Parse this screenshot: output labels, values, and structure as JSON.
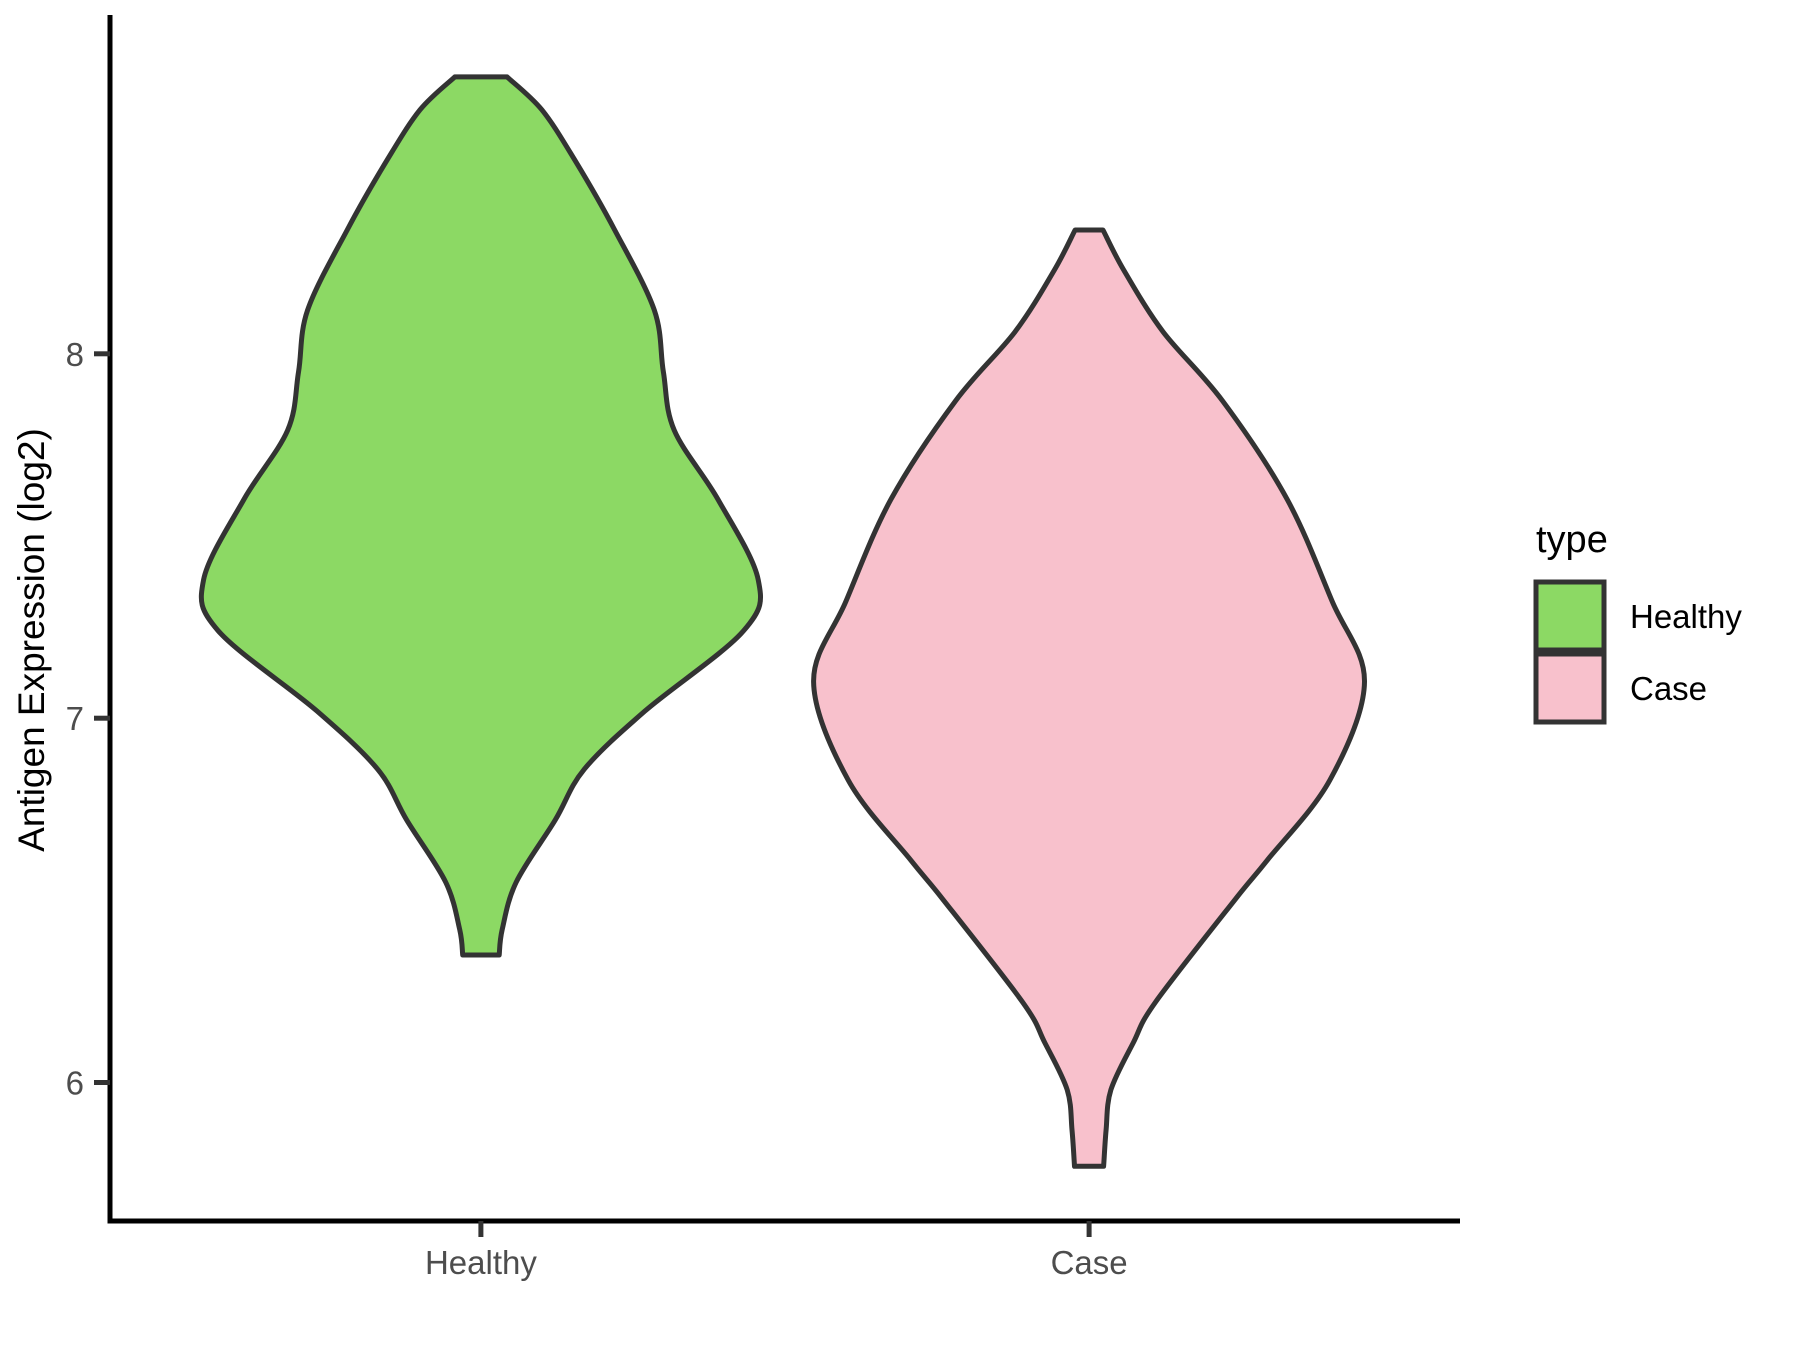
{
  "chart_data": {
    "type": "violin",
    "title": "",
    "xlabel": "",
    "ylabel": "Antigen Expression (log2)",
    "categories": [
      "Healthy",
      "Case"
    ],
    "x_positions": [
      1,
      2
    ],
    "xlim": [
      0.39,
      2.61
    ],
    "ylim": [
      5.62,
      8.93
    ],
    "y_ticks": [
      6,
      7,
      8
    ],
    "grid": false,
    "background": "#FFFFFF",
    "axis_color": "#000000",
    "tick_label_color": "#4D4D4D",
    "outline_color": "#333333",
    "legend": {
      "title": "type",
      "position": "right",
      "entries": [
        {
          "label": "Healthy",
          "color": "#8CD964"
        },
        {
          "label": "Case",
          "color": "#F8C1CC"
        }
      ]
    },
    "series": [
      {
        "name": "Healthy",
        "color": "#8CD964",
        "x": 1,
        "value_range": [
          6.35,
          8.76
        ],
        "profile": [
          [
            8.76,
            0.043
          ],
          [
            8.67,
            0.1
          ],
          [
            8.53,
            0.155
          ],
          [
            8.34,
            0.22
          ],
          [
            8.12,
            0.285
          ],
          [
            7.95,
            0.3
          ],
          [
            7.79,
            0.318
          ],
          [
            7.6,
            0.39
          ],
          [
            7.38,
            0.456
          ],
          [
            7.24,
            0.432
          ],
          [
            7.02,
            0.27
          ],
          [
            6.86,
            0.17
          ],
          [
            6.72,
            0.122
          ],
          [
            6.55,
            0.058
          ],
          [
            6.42,
            0.035
          ],
          [
            6.35,
            0.03
          ]
        ]
      },
      {
        "name": "Case",
        "color": "#F8C1CC",
        "x": 2,
        "value_range": [
          5.77,
          8.34
        ],
        "profile": [
          [
            8.34,
            0.023
          ],
          [
            8.23,
            0.057
          ],
          [
            8.06,
            0.122
          ],
          [
            7.87,
            0.22
          ],
          [
            7.6,
            0.326
          ],
          [
            7.32,
            0.4
          ],
          [
            7.1,
            0.453
          ],
          [
            6.83,
            0.396
          ],
          [
            6.61,
            0.293
          ],
          [
            6.5,
            0.239
          ],
          [
            6.22,
            0.109
          ],
          [
            6.11,
            0.073
          ],
          [
            5.98,
            0.036
          ],
          [
            5.87,
            0.028
          ],
          [
            5.77,
            0.024
          ]
        ]
      }
    ]
  }
}
